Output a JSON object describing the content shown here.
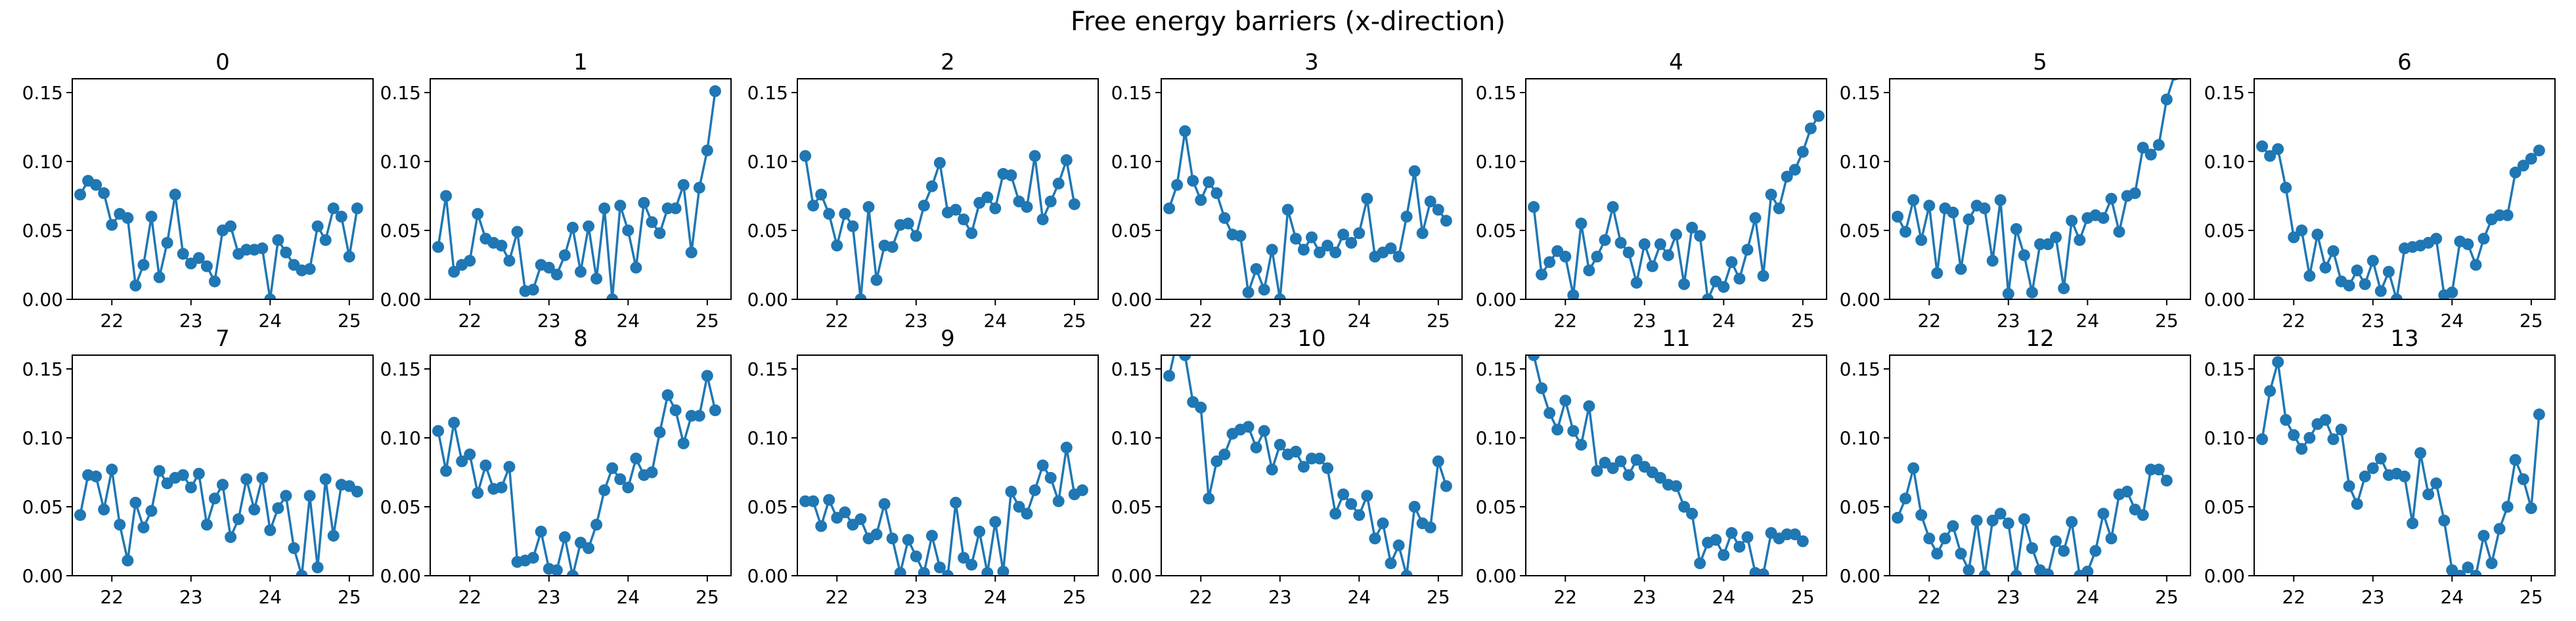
{
  "figure": {
    "title": "Free energy barriers (x-direction)"
  },
  "style": {
    "line_color": "#1f77b4",
    "axis_color": "#000000"
  },
  "chart_data": {
    "type": "line",
    "title": "Free energy barriers (x-direction)",
    "xlim": [
      21.5,
      25.3
    ],
    "ylim": [
      0.0,
      0.16
    ],
    "xticks": [
      22,
      23,
      24,
      25
    ],
    "xtick_labels": [
      "22",
      "23",
      "24",
      "25"
    ],
    "yticks": [
      0.0,
      0.05,
      0.1,
      0.15
    ],
    "ytick_labels": [
      "0.00",
      "0.05",
      "0.10",
      "0.15"
    ],
    "x": [
      21.6,
      21.7,
      21.8,
      21.9,
      22.0,
      22.1,
      22.2,
      22.3,
      22.4,
      22.5,
      22.6,
      22.7,
      22.8,
      22.9,
      23.0,
      23.1,
      23.2,
      23.3,
      23.4,
      23.5,
      23.6,
      23.7,
      23.8,
      23.9,
      24.0,
      24.1,
      24.2,
      24.3,
      24.4,
      24.5,
      24.6,
      24.7,
      24.8,
      24.9,
      25.0,
      25.1,
      25.2
    ],
    "panels": [
      {
        "title": "0",
        "values": [
          0.076,
          0.086,
          0.083,
          0.077,
          0.054,
          0.062,
          0.059,
          0.01,
          0.025,
          0.06,
          0.016,
          0.041,
          0.076,
          0.033,
          0.026,
          0.03,
          0.024,
          0.013,
          0.05,
          0.053,
          0.033,
          0.036,
          0.036,
          0.037,
          0.0,
          0.043,
          0.034,
          0.025,
          0.021,
          0.022,
          0.053,
          0.043,
          0.066,
          0.06,
          0.031,
          0.066
        ]
      },
      {
        "title": "1",
        "values": [
          0.038,
          0.075,
          0.02,
          0.025,
          0.028,
          0.062,
          0.044,
          0.041,
          0.039,
          0.028,
          0.049,
          0.006,
          0.007,
          0.025,
          0.023,
          0.018,
          0.032,
          0.052,
          0.02,
          0.053,
          0.015,
          0.066,
          0.0,
          0.068,
          0.05,
          0.023,
          0.07,
          0.056,
          0.048,
          0.066,
          0.066,
          0.083,
          0.034,
          0.081,
          0.108,
          0.151
        ]
      },
      {
        "title": "2",
        "values": [
          0.104,
          0.068,
          0.076,
          0.062,
          0.039,
          0.062,
          0.053,
          0.0,
          0.067,
          0.014,
          0.039,
          0.038,
          0.054,
          0.055,
          0.046,
          0.068,
          0.082,
          0.099,
          0.063,
          0.065,
          0.058,
          0.048,
          0.07,
          0.074,
          0.066,
          0.091,
          0.09,
          0.071,
          0.067,
          0.104,
          0.058,
          0.071,
          0.084,
          0.101,
          0.069
        ]
      },
      {
        "title": "3",
        "values": [
          0.066,
          0.083,
          0.122,
          0.086,
          0.072,
          0.085,
          0.077,
          0.059,
          0.047,
          0.046,
          0.005,
          0.022,
          0.007,
          0.036,
          0.0,
          0.065,
          0.044,
          0.036,
          0.045,
          0.034,
          0.039,
          0.034,
          0.047,
          0.041,
          0.048,
          0.073,
          0.031,
          0.034,
          0.037,
          0.031,
          0.06,
          0.093,
          0.048,
          0.071,
          0.065,
          0.057
        ]
      },
      {
        "title": "4",
        "values": [
          0.067,
          0.018,
          0.027,
          0.035,
          0.031,
          0.003,
          0.055,
          0.021,
          0.031,
          0.043,
          0.067,
          0.041,
          0.034,
          0.012,
          0.04,
          0.024,
          0.04,
          0.032,
          0.047,
          0.011,
          0.052,
          0.046,
          0.0,
          0.013,
          0.009,
          0.027,
          0.015,
          0.036,
          0.059,
          0.017,
          0.076,
          0.066,
          0.089,
          0.094,
          0.107,
          0.124,
          0.133
        ]
      },
      {
        "title": "5",
        "values": [
          0.06,
          0.049,
          0.072,
          0.043,
          0.068,
          0.019,
          0.066,
          0.063,
          0.022,
          0.058,
          0.068,
          0.066,
          0.028,
          0.072,
          0.004,
          0.051,
          0.032,
          0.005,
          0.04,
          0.04,
          0.045,
          0.008,
          0.057,
          0.043,
          0.059,
          0.061,
          0.059,
          0.073,
          0.049,
          0.075,
          0.077,
          0.11,
          0.105,
          0.112,
          0.145,
          0.163
        ]
      },
      {
        "title": "6",
        "values": [
          0.111,
          0.104,
          0.109,
          0.081,
          0.045,
          0.05,
          0.017,
          0.047,
          0.023,
          0.035,
          0.013,
          0.01,
          0.021,
          0.011,
          0.028,
          0.006,
          0.02,
          0.0,
          0.037,
          0.038,
          0.039,
          0.041,
          0.044,
          0.003,
          0.005,
          0.042,
          0.04,
          0.025,
          0.044,
          0.058,
          0.061,
          0.061,
          0.092,
          0.097,
          0.102,
          0.108
        ]
      },
      {
        "title": "7",
        "values": [
          0.044,
          0.073,
          0.072,
          0.048,
          0.077,
          0.037,
          0.011,
          0.053,
          0.035,
          0.047,
          0.076,
          0.067,
          0.071,
          0.073,
          0.064,
          0.074,
          0.037,
          0.056,
          0.066,
          0.028,
          0.041,
          0.07,
          0.048,
          0.071,
          0.033,
          0.049,
          0.058,
          0.02,
          0.0,
          0.058,
          0.006,
          0.07,
          0.029,
          0.066,
          0.065,
          0.061
        ]
      },
      {
        "title": "8",
        "values": [
          0.105,
          0.076,
          0.111,
          0.083,
          0.088,
          0.06,
          0.08,
          0.063,
          0.064,
          0.079,
          0.01,
          0.011,
          0.013,
          0.032,
          0.005,
          0.004,
          0.028,
          0.0,
          0.024,
          0.02,
          0.037,
          0.062,
          0.078,
          0.07,
          0.064,
          0.085,
          0.073,
          0.075,
          0.104,
          0.131,
          0.12,
          0.096,
          0.116,
          0.116,
          0.145,
          0.12
        ]
      },
      {
        "title": "9",
        "values": [
          0.054,
          0.054,
          0.036,
          0.055,
          0.042,
          0.046,
          0.037,
          0.041,
          0.027,
          0.03,
          0.052,
          0.027,
          0.002,
          0.026,
          0.014,
          0.002,
          0.029,
          0.006,
          0.0,
          0.053,
          0.013,
          0.008,
          0.032,
          0.002,
          0.039,
          0.003,
          0.061,
          0.05,
          0.045,
          0.062,
          0.08,
          0.071,
          0.054,
          0.093,
          0.059,
          0.062
        ]
      },
      {
        "title": "10",
        "values": [
          0.145,
          0.17,
          0.16,
          0.126,
          0.122,
          0.056,
          0.083,
          0.088,
          0.103,
          0.106,
          0.108,
          0.093,
          0.105,
          0.077,
          0.095,
          0.088,
          0.09,
          0.079,
          0.085,
          0.085,
          0.078,
          0.045,
          0.059,
          0.052,
          0.044,
          0.058,
          0.027,
          0.038,
          0.009,
          0.022,
          0.0,
          0.05,
          0.038,
          0.035,
          0.083,
          0.065
        ]
      },
      {
        "title": "11",
        "values": [
          0.16,
          0.136,
          0.118,
          0.106,
          0.127,
          0.105,
          0.095,
          0.123,
          0.076,
          0.082,
          0.078,
          0.083,
          0.073,
          0.084,
          0.079,
          0.075,
          0.071,
          0.066,
          0.065,
          0.05,
          0.045,
          0.009,
          0.024,
          0.026,
          0.015,
          0.031,
          0.021,
          0.028,
          0.002,
          0.001,
          0.031,
          0.027,
          0.03,
          0.03,
          0.025
        ]
      },
      {
        "title": "12",
        "values": [
          0.042,
          0.056,
          0.078,
          0.044,
          0.027,
          0.016,
          0.027,
          0.036,
          0.016,
          0.004,
          0.04,
          0.0,
          0.04,
          0.045,
          0.038,
          0.0,
          0.041,
          0.02,
          0.004,
          0.001,
          0.025,
          0.018,
          0.039,
          0.0,
          0.003,
          0.018,
          0.045,
          0.027,
          0.059,
          0.061,
          0.048,
          0.044,
          0.077,
          0.077,
          0.069
        ]
      },
      {
        "title": "13",
        "values": [
          0.099,
          0.134,
          0.155,
          0.113,
          0.102,
          0.092,
          0.1,
          0.11,
          0.113,
          0.099,
          0.106,
          0.065,
          0.052,
          0.072,
          0.078,
          0.085,
          0.073,
          0.074,
          0.072,
          0.038,
          0.089,
          0.059,
          0.067,
          0.04,
          0.004,
          0.0,
          0.006,
          0.0,
          0.029,
          0.009,
          0.034,
          0.05,
          0.084,
          0.07,
          0.049,
          0.117
        ]
      }
    ]
  }
}
